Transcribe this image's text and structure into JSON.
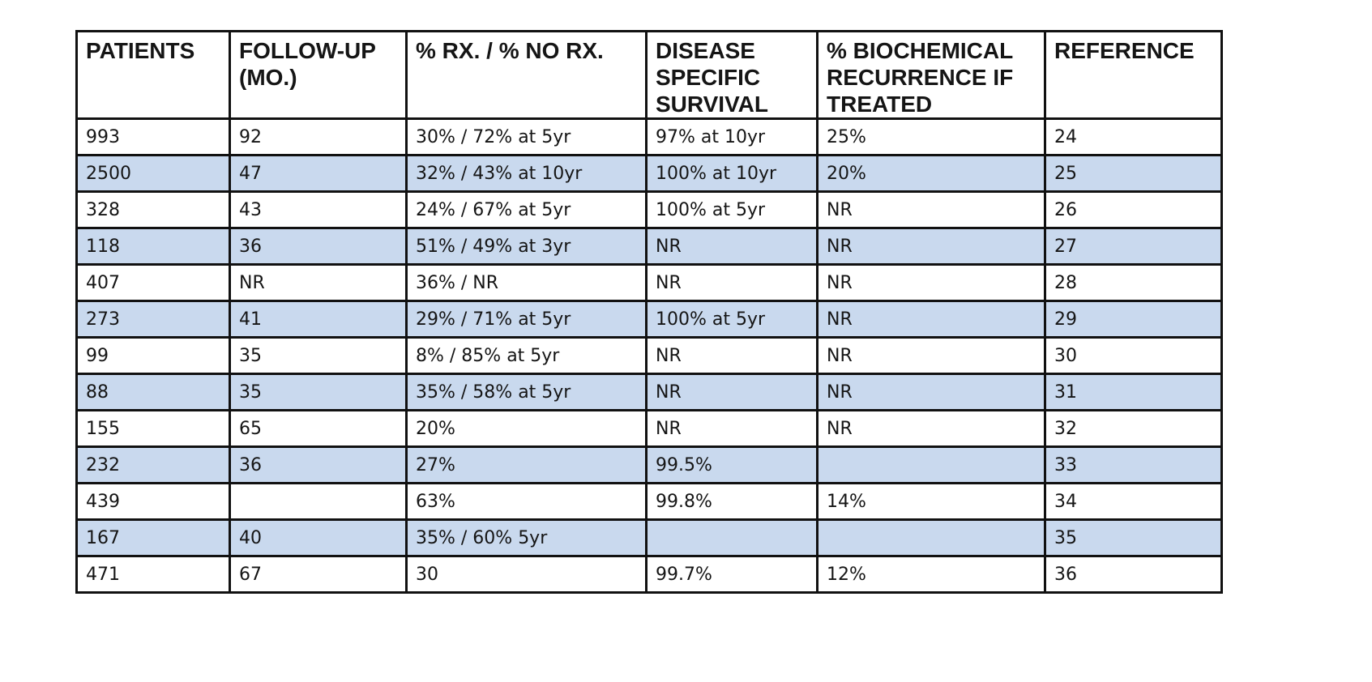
{
  "table": {
    "headers": [
      "PATIENTS",
      "FOLLOW-UP (MO.)",
      "% RX. / % NO RX.",
      "DISEASE SPECIFIC SURVIVAL",
      "% BIOCHEMICAL RECURRENCE IF TREATED",
      "REFERENCE"
    ],
    "rows": [
      [
        "993",
        "92",
        "30% / 72% at 5yr",
        "97% at 10yr",
        "25%",
        "24"
      ],
      [
        "2500",
        "47",
        "32% / 43% at 10yr",
        "100% at 10yr",
        "20%",
        "25"
      ],
      [
        "328",
        "43",
        "24% / 67% at 5yr",
        "100% at 5yr",
        "NR",
        "26"
      ],
      [
        "118",
        "36",
        "51% / 49% at 3yr",
        "NR",
        "NR",
        "27"
      ],
      [
        "407",
        "NR",
        "36% / NR",
        "NR",
        "NR",
        "28"
      ],
      [
        "273",
        "41",
        "29% / 71% at 5yr",
        "100% at 5yr",
        "NR",
        "29"
      ],
      [
        "99",
        "35",
        "8% / 85% at 5yr",
        "NR",
        "NR",
        "30"
      ],
      [
        "88",
        "35",
        "35% / 58% at 5yr",
        "NR",
        "NR",
        "31"
      ],
      [
        "155",
        "65",
        "20%",
        "NR",
        "NR",
        "32"
      ],
      [
        "232",
        "36",
        "27%",
        "99.5%",
        "",
        "33"
      ],
      [
        "439",
        "",
        "63%",
        "99.8%",
        "14%",
        "34"
      ],
      [
        "167",
        "40",
        "35% / 60% 5yr",
        "",
        "",
        "35"
      ],
      [
        "471",
        "67",
        "30",
        "99.7%",
        "12%",
        "36"
      ]
    ]
  },
  "colors": {
    "stripe": "#c9d9ee",
    "border": "#111111",
    "text": "#151515"
  }
}
